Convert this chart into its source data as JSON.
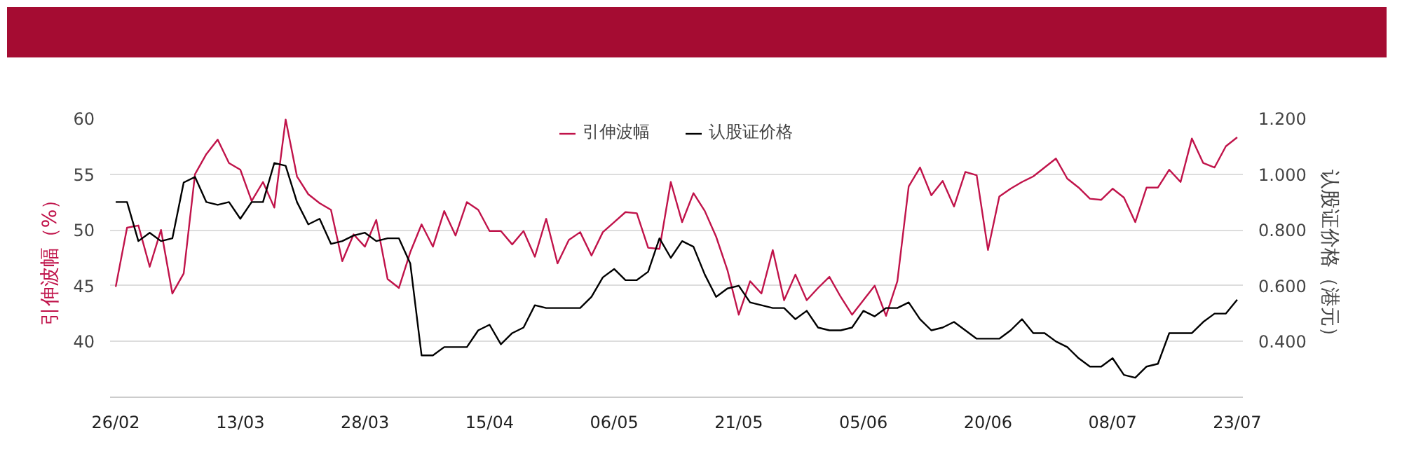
{
  "chart_data": {
    "type": "line",
    "ylabel": "引伸波幅（%）",
    "y2label": "认股证价格（港元）",
    "categories": [
      "26/02",
      null,
      null,
      null,
      null,
      null,
      null,
      null,
      null,
      null,
      null,
      "13/03",
      null,
      null,
      null,
      null,
      null,
      null,
      null,
      null,
      null,
      null,
      "28/03",
      null,
      null,
      null,
      null,
      null,
      null,
      null,
      null,
      null,
      null,
      "15/04",
      null,
      null,
      null,
      null,
      null,
      null,
      null,
      null,
      null,
      null,
      "06/05",
      null,
      null,
      null,
      null,
      null,
      null,
      null,
      null,
      null,
      null,
      "21/05",
      null,
      null,
      null,
      null,
      null,
      null,
      null,
      null,
      null,
      null,
      "05/06",
      null,
      null,
      null,
      null,
      null,
      null,
      null,
      null,
      null,
      null,
      "20/06",
      null,
      null,
      null,
      null,
      null,
      null,
      null,
      null,
      null,
      null,
      "08/07",
      null,
      null,
      null,
      null,
      null,
      null,
      null,
      null,
      null,
      null,
      "23/07"
    ],
    "series": [
      {
        "name": "引伸波幅",
        "color": "#c0134a",
        "values": [
          44.9,
          50.2,
          50.4,
          46.7,
          50.0,
          44.3,
          46.1,
          55.0,
          56.8,
          58.1,
          56.0,
          55.4,
          52.6,
          54.3,
          52.0,
          59.9,
          54.8,
          53.2,
          52.4,
          51.8,
          47.2,
          49.6,
          48.5,
          50.9,
          45.6,
          44.8,
          48.0,
          50.5,
          48.5,
          51.7,
          49.5,
          52.5,
          51.8,
          49.9,
          49.9,
          48.7,
          49.9,
          47.6,
          51.0,
          47.0,
          49.1,
          49.8,
          47.7,
          49.8,
          50.7,
          51.6,
          51.5,
          48.4,
          48.3,
          54.3,
          50.7,
          53.3,
          51.7,
          49.4,
          46.4,
          42.4,
          45.4,
          44.3,
          48.2,
          43.7,
          46.0,
          43.7,
          44.8,
          45.8,
          44.0,
          42.4,
          43.7,
          45.0,
          42.3,
          45.4,
          53.9,
          55.6,
          53.1,
          54.4,
          52.1,
          55.2,
          54.9,
          48.2,
          53.0,
          53.7,
          54.3,
          54.8,
          55.6,
          56.4,
          54.6,
          53.8,
          52.8,
          52.7,
          53.7,
          52.9,
          50.7,
          53.8,
          53.8,
          55.4,
          54.3,
          58.2,
          56.0,
          55.6,
          57.5,
          58.3
        ]
      },
      {
        "name": "认股证价格",
        "color": "#000000",
        "axis": "y2",
        "values": [
          0.9,
          0.9,
          0.76,
          0.79,
          0.76,
          0.77,
          0.97,
          0.99,
          0.9,
          0.89,
          0.9,
          0.84,
          0.9,
          0.9,
          1.04,
          1.03,
          0.9,
          0.82,
          0.84,
          0.75,
          0.76,
          0.78,
          0.79,
          0.76,
          0.77,
          0.77,
          0.68,
          0.35,
          0.35,
          0.38,
          0.38,
          0.38,
          0.44,
          0.46,
          0.39,
          0.43,
          0.45,
          0.53,
          0.52,
          0.52,
          0.52,
          0.52,
          0.56,
          0.63,
          0.66,
          0.62,
          0.62,
          0.65,
          0.77,
          0.7,
          0.76,
          0.74,
          0.64,
          0.56,
          0.59,
          0.6,
          0.54,
          0.53,
          0.52,
          0.52,
          0.48,
          0.51,
          0.45,
          0.44,
          0.44,
          0.45,
          0.51,
          0.49,
          0.52,
          0.52,
          0.54,
          0.48,
          0.44,
          0.45,
          0.47,
          0.44,
          0.41,
          0.41,
          0.41,
          0.44,
          0.48,
          0.43,
          0.43,
          0.4,
          0.38,
          0.34,
          0.31,
          0.31,
          0.34,
          0.28,
          0.27,
          0.31,
          0.32,
          0.43,
          0.43,
          0.43,
          0.47,
          0.5,
          0.5,
          0.55
        ]
      }
    ],
    "ylim": [
      35,
      60
    ],
    "yticks": [
      40,
      45,
      50,
      55,
      60
    ],
    "y2lim": [
      0.2,
      1.2
    ],
    "y2ticks": [
      {
        "value": 0.4,
        "label": "0.400"
      },
      {
        "value": 0.6,
        "label": "0.600"
      },
      {
        "value": 0.8,
        "label": "0.800"
      },
      {
        "value": 1.0,
        "label": "1.000"
      },
      {
        "value": 1.2,
        "label": "1.200"
      }
    ],
    "grid": "y",
    "legend": "top",
    "marker": "none",
    "line_style": "solid"
  }
}
